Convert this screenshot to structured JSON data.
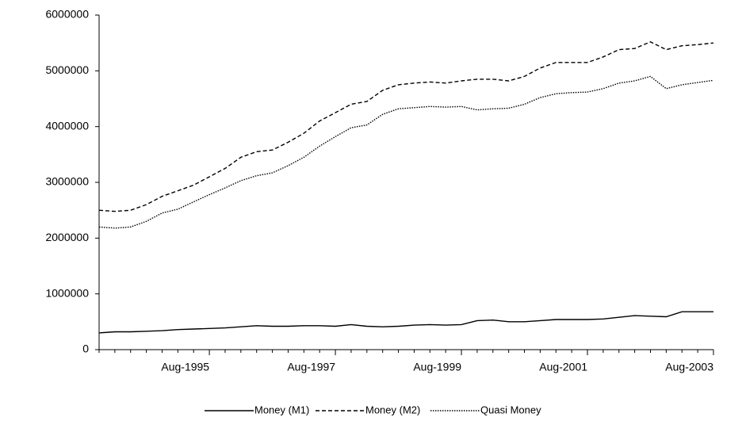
{
  "chart_data": {
    "type": "line",
    "categories": [
      null,
      null,
      null,
      null,
      null,
      null,
      null,
      "Aug-1995",
      null,
      null,
      null,
      null,
      null,
      null,
      null,
      "Aug-1997",
      null,
      null,
      null,
      null,
      null,
      null,
      null,
      "Aug-1999",
      null,
      null,
      null,
      null,
      null,
      null,
      null,
      "Aug-2001",
      null,
      null,
      null,
      null,
      null,
      null,
      null,
      "Aug-2003"
    ],
    "series": [
      {
        "name": "Money (M1)",
        "color": "#000000",
        "dash": "solid",
        "values": [
          300000,
          320000,
          320000,
          330000,
          340000,
          360000,
          370000,
          380000,
          390000,
          410000,
          430000,
          420000,
          420000,
          430000,
          430000,
          420000,
          450000,
          420000,
          410000,
          420000,
          440000,
          450000,
          440000,
          450000,
          520000,
          530000,
          500000,
          500000,
          520000,
          540000,
          540000,
          540000,
          550000,
          580000,
          610000,
          600000,
          590000,
          680000,
          680000,
          680000
        ]
      },
      {
        "name": "Money (M2)",
        "color": "#000000",
        "dash": "dashed",
        "values": [
          2500000,
          2480000,
          2500000,
          2600000,
          2750000,
          2850000,
          2950000,
          3100000,
          3250000,
          3450000,
          3550000,
          3580000,
          3720000,
          3880000,
          4100000,
          4250000,
          4400000,
          4450000,
          4650000,
          4750000,
          4780000,
          4800000,
          4780000,
          4820000,
          4850000,
          4850000,
          4820000,
          4900000,
          5050000,
          5150000,
          5150000,
          5150000,
          5250000,
          5380000,
          5400000,
          5520000,
          5380000,
          5450000,
          5470000,
          5500000
        ]
      },
      {
        "name": "Quasi Money",
        "color": "#000000",
        "dash": "dotted",
        "values": [
          2200000,
          2180000,
          2200000,
          2300000,
          2450000,
          2520000,
          2650000,
          2780000,
          2900000,
          3030000,
          3120000,
          3170000,
          3300000,
          3450000,
          3650000,
          3820000,
          3980000,
          4030000,
          4220000,
          4320000,
          4340000,
          4360000,
          4350000,
          4360000,
          4300000,
          4320000,
          4330000,
          4400000,
          4520000,
          4590000,
          4610000,
          4620000,
          4680000,
          4780000,
          4820000,
          4900000,
          4680000,
          4750000,
          4790000,
          4830000
        ]
      }
    ],
    "ylim": [
      0,
      6000000
    ],
    "yticks": [
      0,
      1000000,
      2000000,
      3000000,
      4000000,
      5000000,
      6000000
    ],
    "grid": false,
    "legend": "bottom"
  }
}
